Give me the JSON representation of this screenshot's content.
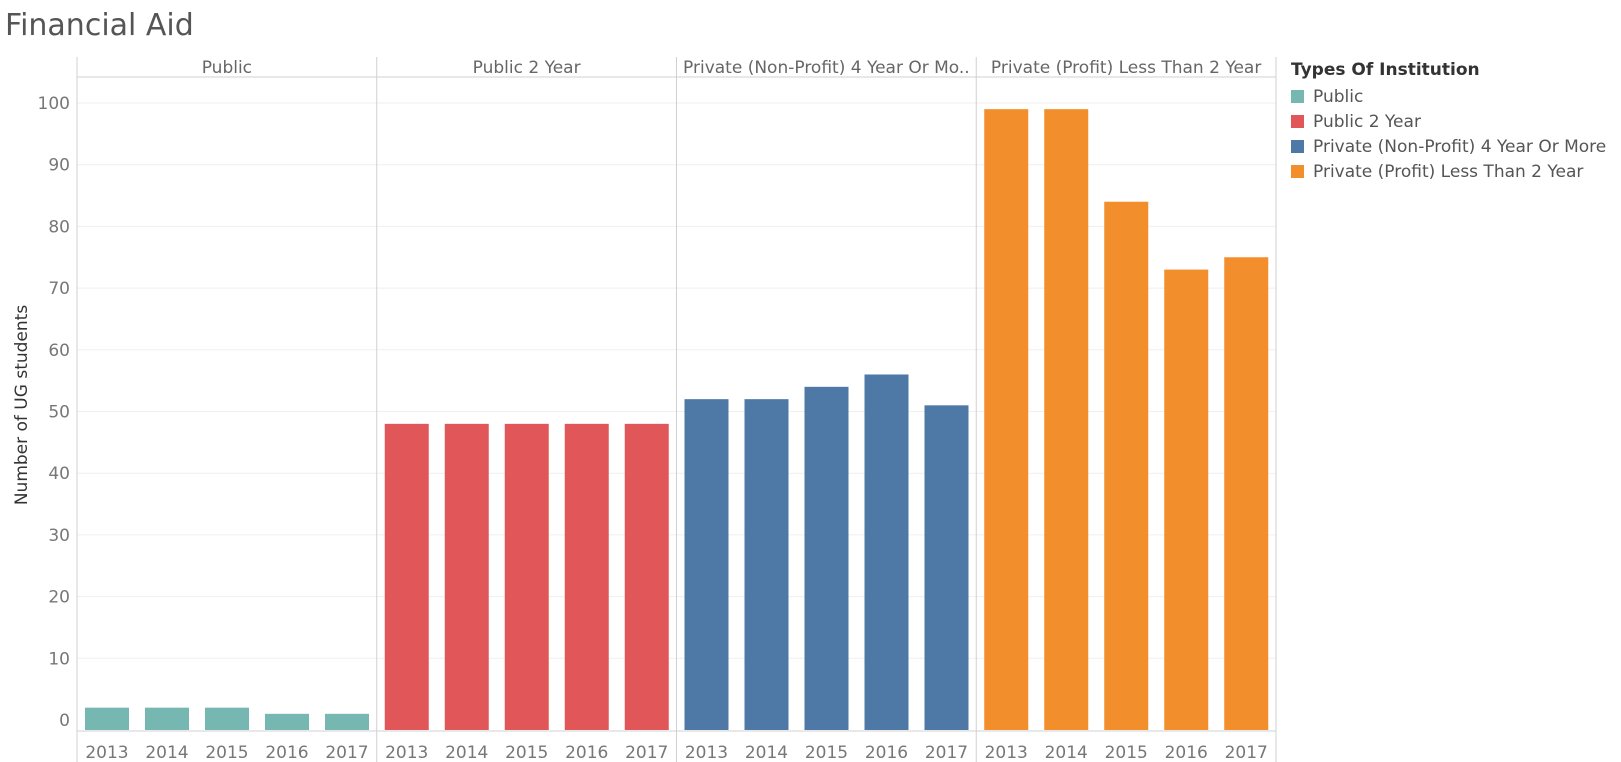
{
  "title": "Financial Aid",
  "chart_data": {
    "type": "bar",
    "title": "Financial Aid",
    "ylabel": "Number of UG students",
    "xlabel": "",
    "ylim": [
      0,
      100
    ],
    "yticks": [
      0,
      10,
      20,
      30,
      40,
      50,
      60,
      70,
      80,
      90,
      100
    ],
    "grid": true,
    "legend_placement": "right",
    "categories": [
      "2013",
      "2014",
      "2015",
      "2016",
      "2017"
    ],
    "series": [
      {
        "name": "Public",
        "panel_label": "Public",
        "color": "#76b7b2",
        "values": [
          2,
          2,
          2,
          1,
          1
        ]
      },
      {
        "name": "Public 2 Year",
        "panel_label": "Public 2 Year",
        "color": "#e15759",
        "values": [
          48,
          48,
          48,
          48,
          48
        ]
      },
      {
        "name": "Private (Non-Profit) 4 Year Or More",
        "panel_label": "Private (Non-Profit) 4 Year Or Mo..",
        "color": "#4e79a7",
        "values": [
          52,
          52,
          54,
          56,
          51
        ]
      },
      {
        "name": "Private (Profit) Less Than 2 Year",
        "panel_label": "Private (Profit) Less Than 2 Year",
        "color": "#f28e2b",
        "values": [
          99,
          99,
          84,
          73,
          75
        ]
      }
    ]
  },
  "legend": {
    "title": "Types Of Institution",
    "items": [
      {
        "label": "Public",
        "color": "#76b7b2"
      },
      {
        "label": "Public 2 Year",
        "color": "#e15759"
      },
      {
        "label": "Private (Non-Profit) 4 Year Or More",
        "color": "#4e79a7"
      },
      {
        "label": "Private (Profit) Less Than 2 Year",
        "color": "#f28e2b"
      }
    ]
  }
}
